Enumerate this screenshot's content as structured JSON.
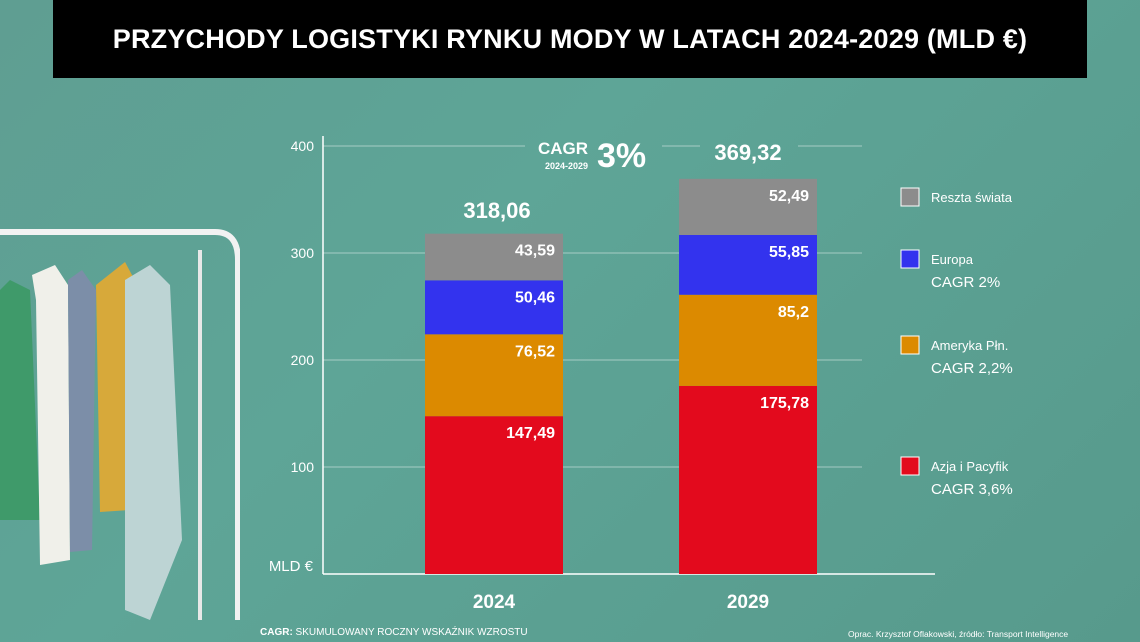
{
  "title": "PRZYCHODY LOGISTYKI RYNKU MODY W LATACH 2024-2029 (MLD €)",
  "chart_data": {
    "type": "bar",
    "stacked": true,
    "categories": [
      "2024",
      "2029"
    ],
    "ylim": [
      0,
      400
    ],
    "yticks": [
      "100",
      "200",
      "300",
      "400"
    ],
    "ylabel": "MLD €",
    "grid": true,
    "legend_position": "right",
    "series": [
      {
        "name": "Azja i Pacyfik",
        "cagr": "CAGR 3,6%",
        "color": "#e30a1d",
        "values": [
          147.49,
          175.78
        ],
        "labels": [
          "147,49",
          "175,78"
        ]
      },
      {
        "name": "Ameryka Płn.",
        "cagr": "CAGR 2,2%",
        "color": "#dc8a00",
        "values": [
          76.52,
          85.2
        ],
        "labels": [
          "76,52",
          "85,2"
        ]
      },
      {
        "name": "Europa",
        "cagr": "CAGR 2%",
        "color": "#3333ee",
        "values": [
          50.46,
          55.85
        ],
        "labels": [
          "50,46",
          "55,85"
        ]
      },
      {
        "name": "Reszta świata",
        "cagr": "",
        "color": "#8c8c8c",
        "values": [
          43.59,
          52.49
        ],
        "labels": [
          "43,59",
          "52,49"
        ]
      }
    ],
    "totals": [
      "318,06",
      "369,32"
    ],
    "cagr_annotation": {
      "label": "CAGR",
      "period": "2024-2029",
      "value": "3%"
    }
  },
  "footer": {
    "cagr_bold": "CAGR:",
    "cagr_text": " SKUMULOWANY ROCZNY WSKAŹNIK WZROSTU",
    "source": "Oprac. Krzysztof Oflakowski, źródło: Transport Intelligence"
  }
}
